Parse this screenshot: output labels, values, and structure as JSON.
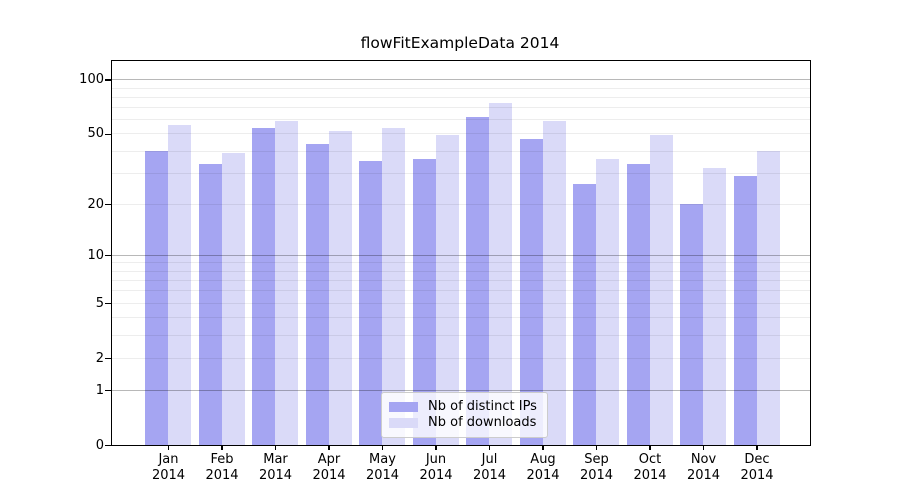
{
  "title": "flowFitExampleData 2014",
  "chart_data": {
    "type": "bar",
    "title": "flowFitExampleData 2014",
    "categories": [
      "Jan",
      "Feb",
      "Mar",
      "Apr",
      "May",
      "Jun",
      "Jul",
      "Aug",
      "Sep",
      "Oct",
      "Nov",
      "Dec"
    ],
    "year_label": "2014",
    "series": [
      {
        "name": "Nb of distinct IPs",
        "color": "#a5a5f2",
        "values": [
          40,
          34,
          54,
          44,
          35,
          36,
          62,
          47,
          26,
          34,
          20,
          29
        ]
      },
      {
        "name": "Nb of downloads",
        "color": "#dadaf8",
        "values": [
          56,
          39,
          59,
          52,
          54,
          49,
          74,
          59,
          36,
          49,
          32,
          40
        ]
      }
    ],
    "xlabel": "",
    "ylabel": "",
    "yscale": "log1p",
    "ylim": [
      0,
      127
    ],
    "yticks": [
      0,
      1,
      2,
      5,
      10,
      20,
      50,
      100
    ],
    "grid": {
      "state": "on",
      "minor_values": [
        2,
        3,
        4,
        5,
        6,
        7,
        8,
        9,
        20,
        30,
        40,
        50,
        60,
        70,
        80,
        90
      ],
      "decade_values": [
        1,
        10,
        100
      ],
      "minor_color": "rgba(0,0,0,0.07)",
      "decade_color": "rgba(0,0,0,0.28)"
    },
    "legend_position": "bottom-center",
    "axis_color": "#000000",
    "background_color": "#ffffff"
  }
}
